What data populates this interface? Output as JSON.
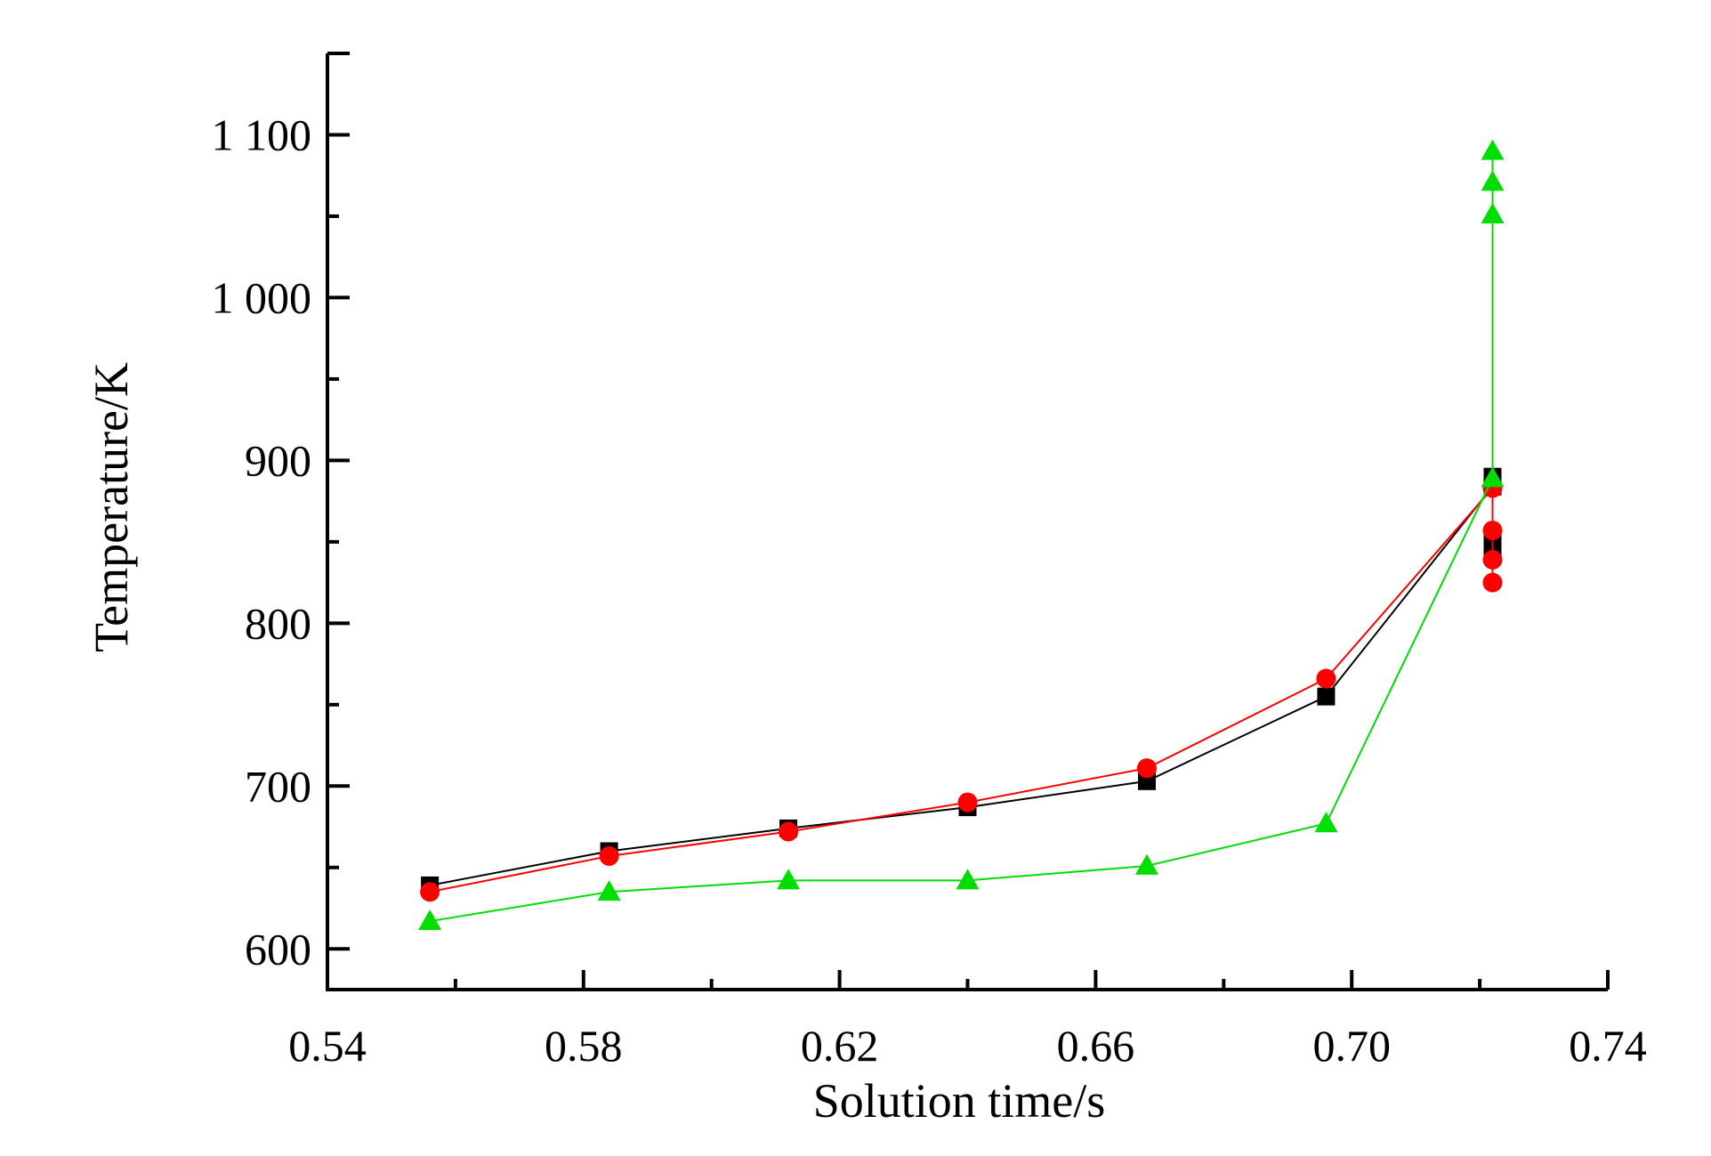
{
  "chart_data": {
    "type": "line",
    "xlabel": "Solution time/s",
    "ylabel": "Temperature/K",
    "xlim": [
      0.54,
      0.74
    ],
    "ylim": [
      575,
      1150
    ],
    "x_ticks": [
      {
        "value": 0.54,
        "label": "0.54"
      },
      {
        "value": 0.58,
        "label": "0.58"
      },
      {
        "value": 0.62,
        "label": "0.62"
      },
      {
        "value": 0.66,
        "label": "0.66"
      },
      {
        "value": 0.7,
        "label": "0.70"
      },
      {
        "value": 0.74,
        "label": "0.74"
      }
    ],
    "y_ticks": [
      {
        "value": 600,
        "label": "600"
      },
      {
        "value": 700,
        "label": "700"
      },
      {
        "value": 800,
        "label": "800"
      },
      {
        "value": 900,
        "label": "900"
      },
      {
        "value": 1000,
        "label": "1 000"
      },
      {
        "value": 1100,
        "label": "1 100"
      }
    ],
    "grid": false,
    "legend": "none",
    "series": [
      {
        "marker": "square",
        "color": "#000000",
        "points": [
          [
            0.556,
            639
          ],
          [
            0.584,
            660
          ],
          [
            0.612,
            674
          ],
          [
            0.64,
            687
          ],
          [
            0.668,
            703
          ],
          [
            0.696,
            755
          ],
          [
            0.722,
            884
          ],
          [
            0.722,
            890
          ],
          [
            0.722,
            886
          ],
          [
            0.722,
            852
          ],
          [
            0.722,
            846
          ]
        ]
      },
      {
        "marker": "circle",
        "color": "#ff0000",
        "points": [
          [
            0.556,
            635
          ],
          [
            0.584,
            657
          ],
          [
            0.612,
            672
          ],
          [
            0.64,
            690
          ],
          [
            0.668,
            711
          ],
          [
            0.696,
            766
          ],
          [
            0.722,
            883
          ],
          [
            0.722,
            857
          ],
          [
            0.722,
            839
          ],
          [
            0.722,
            825
          ]
        ]
      },
      {
        "marker": "triangle",
        "color": "#00dd00",
        "points": [
          [
            0.556,
            617
          ],
          [
            0.584,
            635
          ],
          [
            0.612,
            642
          ],
          [
            0.64,
            642
          ],
          [
            0.668,
            651
          ],
          [
            0.696,
            677
          ],
          [
            0.722,
            889
          ],
          [
            0.722,
            1051
          ],
          [
            0.722,
            1071
          ],
          [
            0.722,
            1090
          ]
        ]
      }
    ]
  }
}
